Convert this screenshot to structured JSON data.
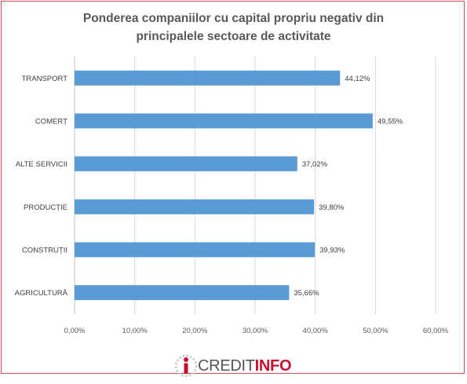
{
  "chart_data": {
    "type": "bar",
    "orientation": "horizontal",
    "title_lines": [
      "Ponderea companiilor cu capital propriu negativ  din",
      "principalele sectoare de activitate"
    ],
    "categories": [
      "TRANSPORT",
      "COMERȚ",
      "ALTE SERVICII",
      "PRODUCȚIE",
      "CONSTRUȚII",
      "AGRICULTURĂ"
    ],
    "values": [
      44.12,
      49.55,
      37.02,
      39.8,
      39.93,
      35.66
    ],
    "value_labels": [
      "44,12%",
      "49,55%",
      "37,02%",
      "39,80%",
      "39,93%",
      "35,66%"
    ],
    "xlim": [
      0,
      60
    ],
    "x_ticks": [
      "0,00%",
      "10,00%",
      "20,00%",
      "30,00%",
      "40,00%",
      "50,00%",
      "60,00%"
    ],
    "grid": "vertical",
    "bar_color": "#5b9bd5",
    "grid_color": "#d9d9d9"
  },
  "logo": {
    "text_part1": "CREDIT",
    "text_part2": "INFO",
    "color_text": "#555555",
    "color_accent": "#c8102e"
  }
}
